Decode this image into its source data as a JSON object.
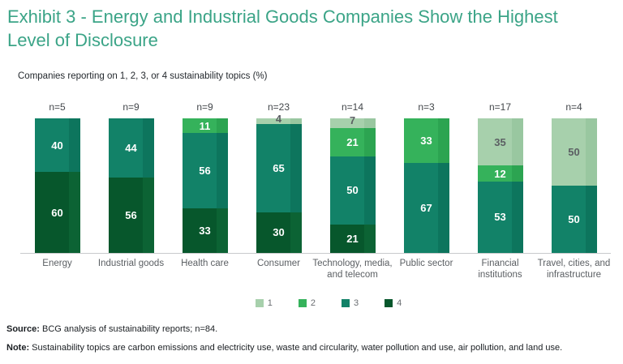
{
  "chart_data": {
    "type": "bar",
    "stacked": true,
    "unit": "percent",
    "ylim": [
      0,
      100
    ],
    "grid": false,
    "legend_position": "bottom",
    "title": "Exhibit 3 - Energy and Industrial Goods Companies Show the Highest Level of Disclosure",
    "title_lines": [
      "Exhibit 3 - Energy and Industrial Goods Companies Show the Highest",
      "Level of Disclosure"
    ],
    "subtitle": "Companies reporting on 1, 2, 3, or 4 sustainability topics (%)",
    "topics": {
      "1": {
        "label": "1",
        "color": "#a7d0ac",
        "edge": "#99c7a0",
        "label_color": "#5b5f63"
      },
      "2": {
        "label": "2",
        "color": "#35b25b",
        "edge": "#2ca451",
        "label_color": "#ffffff"
      },
      "3": {
        "label": "3",
        "color": "#128268",
        "edge": "#0d755d",
        "label_color": "#ffffff"
      },
      "4": {
        "label": "4",
        "color": "#07572c",
        "edge": "#0c6334",
        "label_color": "#ffffff"
      }
    },
    "categories": [
      {
        "name": "Energy",
        "label_lines": [
          "Energy"
        ],
        "n": "n=5",
        "segments": [
          {
            "topic": 3,
            "value": 40
          },
          {
            "topic": 4,
            "value": 60
          }
        ]
      },
      {
        "name": "Industrial goods",
        "label_lines": [
          "Industrial goods"
        ],
        "n": "n=9",
        "segments": [
          {
            "topic": 3,
            "value": 44
          },
          {
            "topic": 4,
            "value": 56
          }
        ]
      },
      {
        "name": "Health care",
        "label_lines": [
          "Health care"
        ],
        "n": "n=9",
        "segments": [
          {
            "topic": 2,
            "value": 11
          },
          {
            "topic": 3,
            "value": 56
          },
          {
            "topic": 4,
            "value": 33
          }
        ]
      },
      {
        "name": "Consumer",
        "label_lines": [
          "Consumer"
        ],
        "n": "n=23",
        "segments": [
          {
            "topic": 1,
            "value": 4
          },
          {
            "topic": 3,
            "value": 65
          },
          {
            "topic": 4,
            "value": 30
          }
        ]
      },
      {
        "name": "Technology, media, and telecom",
        "label_lines": [
          "Technology, media,",
          "and telecom"
        ],
        "n": "n=14",
        "segments": [
          {
            "topic": 1,
            "value": 7
          },
          {
            "topic": 2,
            "value": 21
          },
          {
            "topic": 3,
            "value": 50
          },
          {
            "topic": 4,
            "value": 21
          }
        ]
      },
      {
        "name": "Public sector",
        "label_lines": [
          "Public sector"
        ],
        "n": "n=3",
        "segments": [
          {
            "topic": 2,
            "value": 33
          },
          {
            "topic": 3,
            "value": 67
          }
        ]
      },
      {
        "name": "Financial institutions",
        "label_lines": [
          "Financial",
          "institutions"
        ],
        "n": "n=17",
        "segments": [
          {
            "topic": 1,
            "value": 35
          },
          {
            "topic": 2,
            "value": 12
          },
          {
            "topic": 3,
            "value": 53
          }
        ]
      },
      {
        "name": "Travel, cities, and infrastructure",
        "label_lines": [
          "Travel, cities, and",
          "infrastructure"
        ],
        "n": "n=4",
        "segments": [
          {
            "topic": 1,
            "value": 50
          },
          {
            "topic": 3,
            "value": 50
          }
        ]
      }
    ]
  },
  "footer": {
    "source_prefix": "Source:",
    "source_text": " BCG analysis of sustainability reports; n=84.",
    "note_prefix": "Note:",
    "note_text": " Sustainability topics are carbon emissions and electricity use, waste and circularity, water pollution and use, air pollution, and land use."
  },
  "colors": {
    "title": "#3ba487",
    "axis_line": "#c8cacc",
    "category_label": "#5b5f63",
    "n_label": "#43474b"
  }
}
